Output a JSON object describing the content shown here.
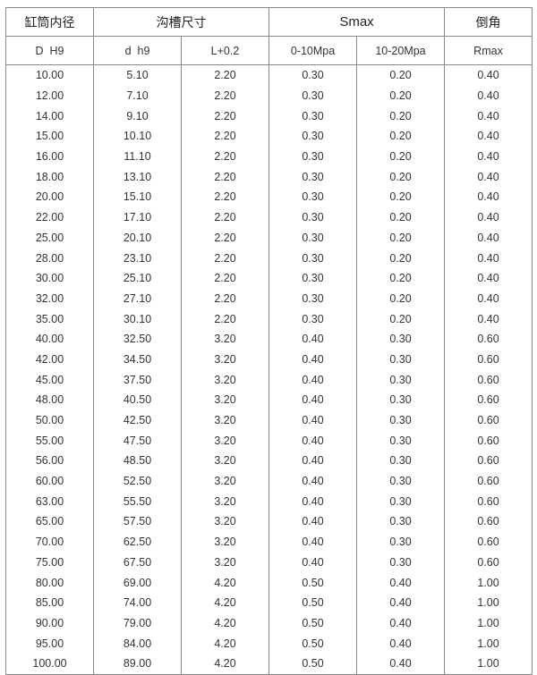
{
  "header": {
    "groups": [
      "缸筒内径",
      "沟槽尺寸",
      "Smax",
      "倒角"
    ],
    "columns": [
      "D  H9",
      "d  h9",
      "L+0.2",
      "0-10Mpa",
      "10-20Mpa",
      "Rmax"
    ]
  },
  "rows": [
    [
      "10.00",
      "5.10",
      "2.20",
      "0.30",
      "0.20",
      "0.40"
    ],
    [
      "12.00",
      "7.10",
      "2.20",
      "0.30",
      "0.20",
      "0.40"
    ],
    [
      "14.00",
      "9.10",
      "2.20",
      "0.30",
      "0.20",
      "0.40"
    ],
    [
      "15.00",
      "10.10",
      "2.20",
      "0.30",
      "0.20",
      "0.40"
    ],
    [
      "16.00",
      "11.10",
      "2.20",
      "0.30",
      "0.20",
      "0.40"
    ],
    [
      "18.00",
      "13.10",
      "2.20",
      "0.30",
      "0.20",
      "0.40"
    ],
    [
      "20.00",
      "15.10",
      "2.20",
      "0.30",
      "0.20",
      "0.40"
    ],
    [
      "22.00",
      "17.10",
      "2.20",
      "0.30",
      "0.20",
      "0.40"
    ],
    [
      "25.00",
      "20.10",
      "2.20",
      "0.30",
      "0.20",
      "0.40"
    ],
    [
      "28.00",
      "23.10",
      "2.20",
      "0.30",
      "0.20",
      "0.40"
    ],
    [
      "30.00",
      "25.10",
      "2.20",
      "0.30",
      "0.20",
      "0.40"
    ],
    [
      "32.00",
      "27.10",
      "2.20",
      "0.30",
      "0.20",
      "0.40"
    ],
    [
      "35.00",
      "30.10",
      "2.20",
      "0.30",
      "0.20",
      "0.40"
    ],
    [
      "40.00",
      "32.50",
      "3.20",
      "0.40",
      "0.30",
      "0.60"
    ],
    [
      "42.00",
      "34.50",
      "3.20",
      "0.40",
      "0.30",
      "0.60"
    ],
    [
      "45.00",
      "37.50",
      "3.20",
      "0.40",
      "0.30",
      "0.60"
    ],
    [
      "48.00",
      "40.50",
      "3.20",
      "0.40",
      "0.30",
      "0.60"
    ],
    [
      "50.00",
      "42.50",
      "3.20",
      "0.40",
      "0.30",
      "0.60"
    ],
    [
      "55.00",
      "47.50",
      "3.20",
      "0.40",
      "0.30",
      "0.60"
    ],
    [
      "56.00",
      "48.50",
      "3.20",
      "0.40",
      "0.30",
      "0.60"
    ],
    [
      "60.00",
      "52.50",
      "3.20",
      "0.40",
      "0.30",
      "0.60"
    ],
    [
      "63.00",
      "55.50",
      "3.20",
      "0.40",
      "0.30",
      "0.60"
    ],
    [
      "65.00",
      "57.50",
      "3.20",
      "0.40",
      "0.30",
      "0.60"
    ],
    [
      "70.00",
      "62.50",
      "3.20",
      "0.40",
      "0.30",
      "0.60"
    ],
    [
      "75.00",
      "67.50",
      "3.20",
      "0.40",
      "0.30",
      "0.60"
    ],
    [
      "80.00",
      "69.00",
      "4.20",
      "0.50",
      "0.40",
      "1.00"
    ],
    [
      "85.00",
      "74.00",
      "4.20",
      "0.50",
      "0.40",
      "1.00"
    ],
    [
      "90.00",
      "79.00",
      "4.20",
      "0.50",
      "0.40",
      "1.00"
    ],
    [
      "95.00",
      "84.00",
      "4.20",
      "0.50",
      "0.40",
      "1.00"
    ],
    [
      "100.00",
      "89.00",
      "4.20",
      "0.50",
      "0.40",
      "1.00"
    ]
  ]
}
